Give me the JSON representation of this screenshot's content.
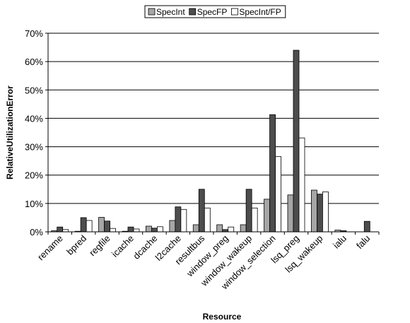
{
  "chart_data": {
    "type": "bar",
    "xlabel": "Resource",
    "ylabel": "RelativeUtilizationError",
    "ylim": [
      0,
      70
    ],
    "yticks": [
      0,
      10,
      20,
      30,
      40,
      50,
      60,
      70
    ],
    "ytick_suffix": "%",
    "grid": "horizontal",
    "legend": "top-center",
    "categories": [
      "rename",
      "bpred",
      "regfile",
      "icache",
      "dcache",
      "l2cache",
      "resultbus",
      "window_preg",
      "window_wakeup",
      "window_selection",
      "lsq_preg",
      "lsq_wakeup",
      "ialu",
      "falu"
    ],
    "series": [
      {
        "name": "SpecInt",
        "color": "#a6a6a6",
        "values": [
          0.4,
          0.2,
          5.1,
          0.2,
          2.0,
          4.0,
          2.5,
          2.5,
          2.5,
          11.5,
          13.0,
          14.7,
          0.6,
          0.0
        ]
      },
      {
        "name": "SpecFP",
        "color": "#4d4d4d",
        "values": [
          1.7,
          5.0,
          3.8,
          1.7,
          1.3,
          8.8,
          15.0,
          0.8,
          15.0,
          41.3,
          64.0,
          13.3,
          0.4,
          3.7
        ]
      },
      {
        "name": "SpecInt/FP",
        "color": "#ffffff",
        "values": [
          0.8,
          4.0,
          1.2,
          1.0,
          1.8,
          7.9,
          8.4,
          1.7,
          8.4,
          26.5,
          33.1,
          14.1,
          0.0,
          0.0
        ]
      }
    ]
  }
}
